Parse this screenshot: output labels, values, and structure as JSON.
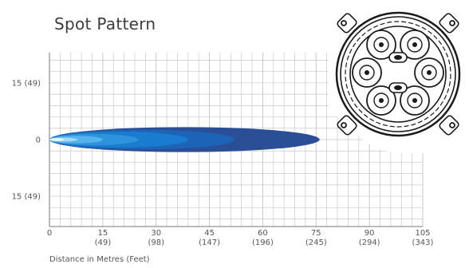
{
  "chart_data": {
    "type": "heatmap",
    "title": "Spot Pattern",
    "xlabel": "Distance in Metres (Feet)",
    "ylabel": "",
    "xlim": [
      0,
      105
    ],
    "ylim": [
      -23,
      23
    ],
    "grid": true,
    "x_ticks": [
      {
        "value": 0,
        "label": "0",
        "sub": ""
      },
      {
        "value": 15,
        "label": "15",
        "sub": "(49)"
      },
      {
        "value": 30,
        "label": "30",
        "sub": "(98)"
      },
      {
        "value": 45,
        "label": "45",
        "sub": "(147)"
      },
      {
        "value": 60,
        "label": "60",
        "sub": "(196)"
      },
      {
        "value": 75,
        "label": "75",
        "sub": "(245)"
      },
      {
        "value": 90,
        "label": "90",
        "sub": "(294)"
      },
      {
        "value": 105,
        "label": "105",
        "sub": "(343)"
      }
    ],
    "y_ticks": [
      {
        "value": 15,
        "label": "15 (49)"
      },
      {
        "value": 0,
        "label": "0"
      },
      {
        "value": -15,
        "label": "15 (49)"
      }
    ],
    "beam_contours": [
      {
        "level": 1,
        "reach_m": 76,
        "half_width_m": 3.3,
        "color": "#2a4f96"
      },
      {
        "level": 2,
        "reach_m": 52,
        "half_width_m": 2.6,
        "color": "#1d64b8"
      },
      {
        "level": 3,
        "reach_m": 39,
        "half_width_m": 2.1,
        "color": "#1a7cce"
      },
      {
        "level": 4,
        "reach_m": 25,
        "half_width_m": 1.5,
        "color": "#2d93dc"
      },
      {
        "level": 5,
        "reach_m": 15,
        "half_width_m": 1.0,
        "color": "#56b2ea"
      },
      {
        "level": 6,
        "reach_m": 8,
        "half_width_m": 0.5,
        "color": "#a8d8f6"
      },
      {
        "level": 7,
        "reach_m": 4,
        "half_width_m": 0.25,
        "color": "#e6f4fd"
      }
    ],
    "colors": {
      "grid": "#c9c9c9",
      "axis_text": "#555555",
      "lamp_line": "#1a1a1a"
    }
  },
  "product_image": {
    "icon": "lamp-front-view-icon"
  }
}
